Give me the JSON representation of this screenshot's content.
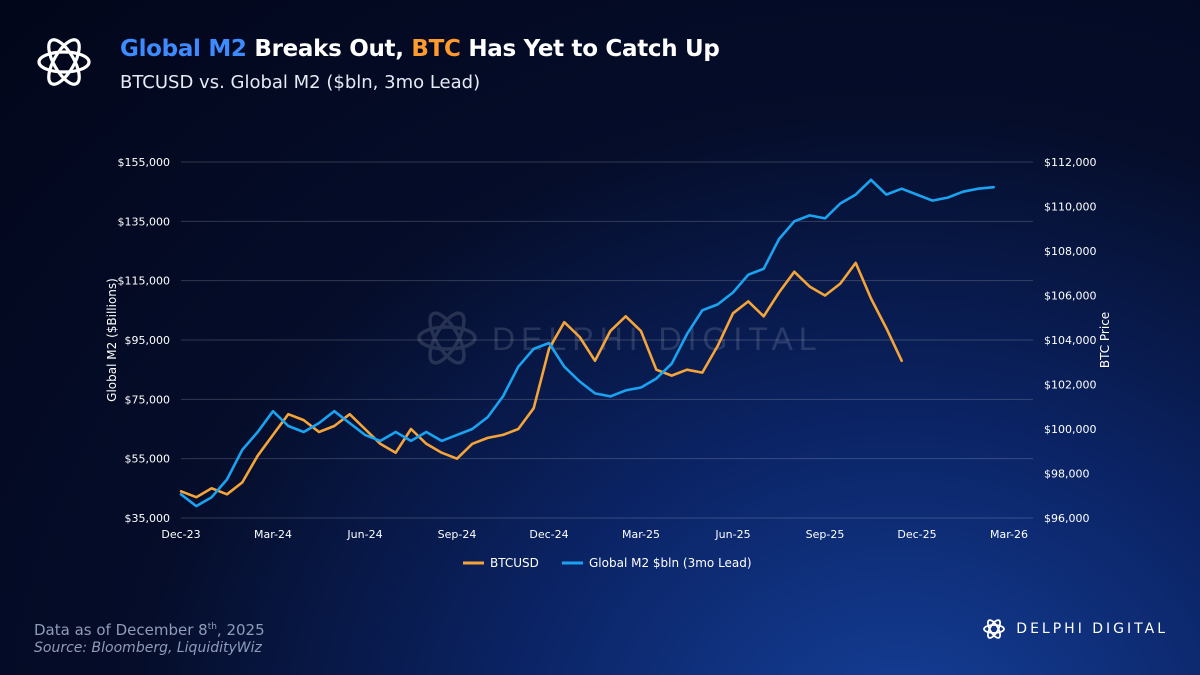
{
  "header": {
    "title_part1": "Global M2",
    "title_part2": " Breaks Out, ",
    "title_part3": "BTC",
    "title_part4": " Has Yet to Catch Up",
    "subtitle": "BTCUSD vs. Global M2 ($bln, 3mo Lead)"
  },
  "watermark": {
    "text": "DELPHI DIGITAL"
  },
  "footer": {
    "date_text": "Data as of December 8",
    "date_suffix": "th",
    "date_year": ", 2025",
    "source": "Source: Bloomberg, LiquidityWiz"
  },
  "brand": {
    "name": "DELPHI DIGITAL"
  },
  "colors": {
    "btc": "#f5a43a",
    "m2": "#1aa3f0",
    "title_blue": "#3d8bff",
    "title_orange": "#ff9a2e"
  },
  "chart_data": {
    "type": "line",
    "x_tick_labels": [
      "Dec-23",
      "Mar-24",
      "Jun-24",
      "Sep-24",
      "Dec-24",
      "Mar-25",
      "Jun-25",
      "Sep-25",
      "Dec-25",
      "Mar-26"
    ],
    "x_range": [
      "Dec-23",
      "Mar-26"
    ],
    "left_axis": {
      "label": "Global M2 ($Billions)",
      "ticks": [
        "$35,000",
        "$55,000",
        "$75,000",
        "$95,000",
        "$115,000",
        "$135,000",
        "$155,000"
      ],
      "range": [
        35000,
        155000
      ]
    },
    "right_axis": {
      "label": "BTC Price",
      "ticks": [
        "$96,000",
        "$98,000",
        "$100,000",
        "$102,000",
        "$104,000",
        "$106,000",
        "$108,000",
        "$110,000",
        "$112,000"
      ],
      "range": [
        96000,
        112000
      ]
    },
    "grid": "horizontal",
    "legend_position": "bottom-center",
    "series": [
      {
        "name": "BTCUSD",
        "axis": "left",
        "x": [
          0,
          0.5,
          1,
          1.5,
          2,
          2.5,
          3,
          3.5,
          4,
          4.5,
          5,
          5.5,
          6,
          6.5,
          7,
          7.5,
          8,
          8.5,
          9,
          9.5,
          10,
          10.5,
          11,
          11.5,
          12,
          12.5,
          13,
          13.5,
          14,
          14.5,
          15,
          15.5,
          16,
          16.5,
          17,
          17.5,
          18,
          18.5,
          19,
          19.5,
          20,
          20.5,
          21,
          21.5,
          22,
          22.5,
          23,
          23.5
        ],
        "values": [
          44000,
          42000,
          45000,
          43000,
          47000,
          56000,
          63000,
          70000,
          68000,
          64000,
          66000,
          70000,
          65000,
          60000,
          57000,
          65000,
          60000,
          57000,
          55000,
          60000,
          62000,
          63000,
          65000,
          72000,
          92000,
          101000,
          96000,
          88000,
          98000,
          103000,
          98000,
          85000,
          83000,
          85000,
          84000,
          93000,
          104000,
          108000,
          103000,
          111000,
          118000,
          113000,
          110000,
          114000,
          121000,
          109000,
          99000,
          88000
        ]
      },
      {
        "name": "Global M2 $bln (3mo Lead)",
        "axis": "left",
        "x": [
          0,
          0.5,
          1,
          1.5,
          2,
          2.5,
          3,
          3.5,
          4,
          4.5,
          5,
          5.5,
          6,
          6.5,
          7,
          7.5,
          8,
          8.5,
          9,
          9.5,
          10,
          10.5,
          11,
          11.5,
          12,
          12.5,
          13,
          13.5,
          14,
          14.5,
          15,
          15.5,
          16,
          16.5,
          17,
          17.5,
          18,
          18.5,
          19,
          19.5,
          20,
          20.5,
          21,
          21.5,
          22,
          22.5,
          23,
          23.5,
          24,
          24.5,
          25,
          25.5,
          26,
          26.5
        ],
        "values": [
          43000,
          39000,
          42000,
          48000,
          58000,
          64000,
          71000,
          66000,
          64000,
          67000,
          71000,
          67000,
          63000,
          61000,
          64000,
          61000,
          64000,
          61000,
          63000,
          65000,
          69000,
          76000,
          86000,
          92000,
          94000,
          86000,
          81000,
          77000,
          76000,
          78000,
          79000,
          82000,
          87000,
          97000,
          105000,
          107000,
          111000,
          117000,
          119000,
          129000,
          135000,
          137000,
          136000,
          141000,
          144000,
          149000,
          144000,
          146000,
          144000,
          142000,
          143000,
          145000,
          146000,
          146500
        ]
      }
    ]
  }
}
